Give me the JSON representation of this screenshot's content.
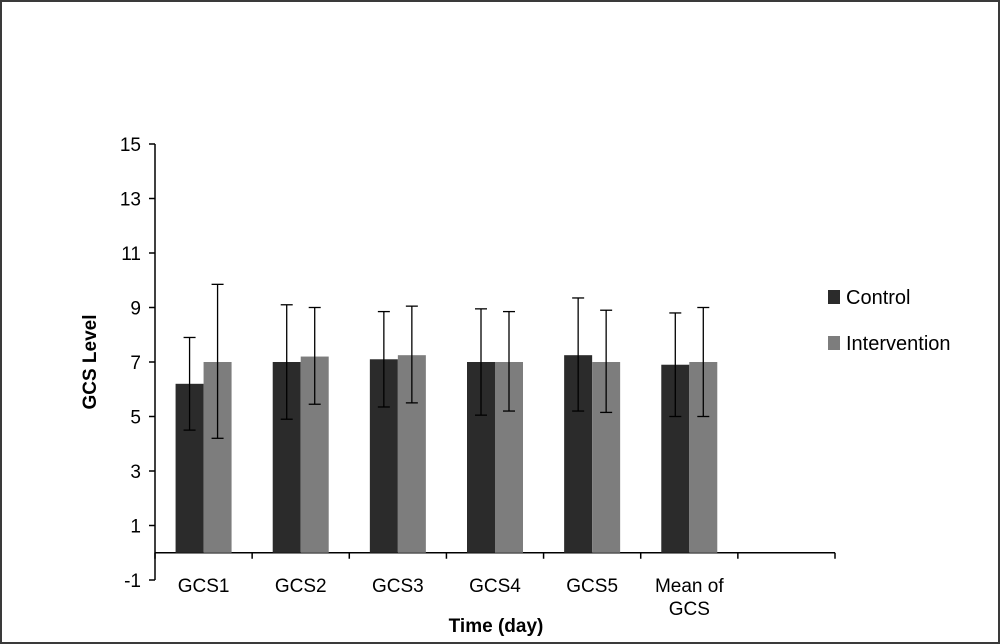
{
  "chart_data": {
    "type": "bar",
    "xlabel": "Time (day)",
    "ylabel": "GCS Level",
    "ylim": [
      -1,
      15
    ],
    "yticks": [
      15,
      13,
      11,
      9,
      7,
      5,
      3,
      1,
      -1
    ],
    "categories": [
      [
        "GCS1"
      ],
      [
        "GCS2"
      ],
      [
        "GCS3"
      ],
      [
        "GCS4"
      ],
      [
        "GCS5"
      ],
      [
        "Mean of",
        "GCS"
      ]
    ],
    "series": [
      {
        "name": "Control",
        "color": "#2b2b2b",
        "values": [
          6.2,
          7.0,
          7.1,
          7.0,
          7.25,
          6.9
        ],
        "error_low": [
          4.5,
          4.9,
          5.35,
          5.05,
          5.2,
          5.0
        ],
        "error_high": [
          7.9,
          9.1,
          8.85,
          8.95,
          9.35,
          8.8
        ]
      },
      {
        "name": "Intervention",
        "color": "#7d7d7d",
        "values": [
          7.0,
          7.2,
          7.25,
          7.0,
          7.0,
          7.0
        ],
        "error_low": [
          4.2,
          5.45,
          5.5,
          5.2,
          5.15,
          5.0
        ],
        "error_high": [
          9.85,
          9.0,
          9.05,
          8.85,
          8.9,
          9.0
        ]
      }
    ],
    "legend_position": "right",
    "grid": false
  }
}
